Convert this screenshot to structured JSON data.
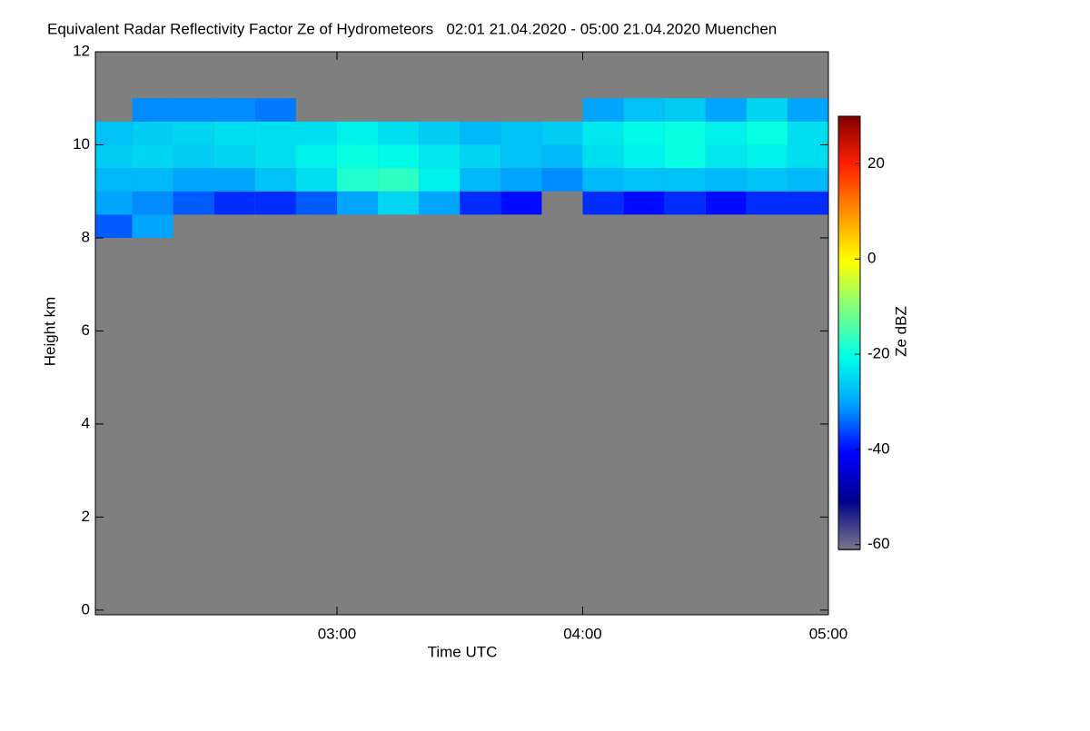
{
  "chart_data": {
    "type": "heatmap",
    "title": "Equivalent Radar Reflectivity Factor Ze of Hydrometeors   02:01 21.04.2020 - 05:00 21.04.2020 Muenchen",
    "x_label": "Time UTC",
    "y_label": "Height km",
    "colorbar_label": "Ze dBZ",
    "x_edges": [
      121,
      130,
      140,
      150,
      160,
      170,
      180,
      190,
      200,
      210,
      220,
      230,
      240,
      250,
      260,
      270,
      280,
      290,
      300
    ],
    "y_edges": [
      8,
      8.5,
      9,
      9.5,
      10,
      10.5,
      11
    ],
    "values": [
      [
        -35,
        -30,
        null,
        null,
        null,
        null,
        null,
        null,
        null,
        null,
        null,
        null,
        null,
        null,
        null,
        null,
        null,
        null
      ],
      [
        -30,
        -32,
        -35,
        -38,
        -38,
        -35,
        -30,
        -25,
        -30,
        -38,
        -40,
        null,
        -38,
        -40,
        -38,
        -40,
        -38,
        -38
      ],
      [
        -28,
        -28,
        -30,
        -30,
        -27,
        -24,
        -18,
        -17,
        -22,
        -28,
        -30,
        -32,
        -28,
        -27,
        -27,
        -28,
        -27,
        -28
      ],
      [
        -26,
        -25,
        -26,
        -25,
        -24,
        -22,
        -20,
        -21,
        -23,
        -25,
        -27,
        -28,
        -24,
        -22,
        -20,
        -23,
        -22,
        -24
      ],
      [
        -27,
        -26,
        -25,
        -24,
        -24,
        -24,
        -22,
        -24,
        -26,
        -28,
        -27,
        -26,
        -23,
        -21,
        -20,
        -22,
        -20,
        -24
      ],
      [
        null,
        -32,
        -32,
        -32,
        -33,
        null,
        null,
        null,
        null,
        null,
        null,
        null,
        -30,
        -27,
        -26,
        -30,
        -25,
        -30
      ]
    ],
    "xlim": [
      121,
      300
    ],
    "xticks": [
      {
        "value": 180,
        "label": "03:00"
      },
      {
        "value": 240,
        "label": "04:00"
      },
      {
        "value": 300,
        "label": "05:00"
      }
    ],
    "ylim": [
      -0.1,
      12
    ],
    "yticks": [
      0,
      2,
      4,
      6,
      8,
      10,
      12
    ],
    "zlim": [
      -61,
      30
    ],
    "zticks": [
      -60,
      -40,
      -20,
      0,
      20
    ],
    "colorscale": [
      "#77778a",
      "#00008c",
      "#0000ff",
      "#00a0ff",
      "#00ffe8",
      "#80ff80",
      "#ffff00",
      "#ff9000",
      "#ff2000",
      "#800000"
    ],
    "background": "#7f7f7f"
  }
}
